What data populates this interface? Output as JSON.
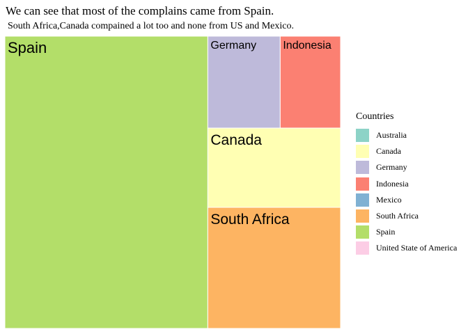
{
  "title": "We can see that most of the complains came from Spain.",
  "subtitle": "South Africa,Canada compained a lot too and none from  US and Mexico.",
  "chart_data": {
    "type": "treemap",
    "legend_title": "Countries",
    "legend_placement": "right",
    "categories": [
      "Australia",
      "Canada",
      "Germany",
      "Indonesia",
      "Mexico",
      "South Africa",
      "Spain",
      "United State of America"
    ],
    "colors": [
      "#8dd3c7",
      "#ffffb3",
      "#bebada",
      "#fb8072",
      "#80b1d3",
      "#fdb462",
      "#b3de69",
      "#fccde5"
    ],
    "values": [
      0,
      19,
      12,
      10,
      0,
      29,
      107,
      0
    ],
    "tiles": [
      {
        "label": "Spain",
        "value": 107
      },
      {
        "label": "Germany",
        "value": 12
      },
      {
        "label": "Indonesia",
        "value": 10
      },
      {
        "label": "Canada",
        "value": 19
      },
      {
        "label": "South Africa",
        "value": 29
      }
    ]
  }
}
